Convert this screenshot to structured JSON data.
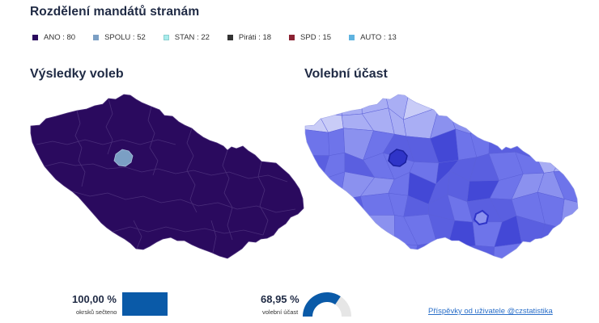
{
  "header": {
    "title": "Rozdělení mandátů stranám"
  },
  "legend": [
    {
      "label": "ANO : 80",
      "color": "#2a0a5e"
    },
    {
      "label": "SPOLU : 52",
      "color": "#7b9fc4"
    },
    {
      "label": "STAN : 22",
      "color": "#a9ecec"
    },
    {
      "label": "Piráti : 18",
      "color": "#333333"
    },
    {
      "label": "SPD : 15",
      "color": "#8b2232"
    },
    {
      "label": "AUTO : 13",
      "color": "#5fb3e0"
    }
  ],
  "maps": {
    "results_title": "Výsledky voleb",
    "turnout_title": "Volební účast",
    "results_fill": "#2a0a5e",
    "results_border": "#4a2e7a",
    "prague_fill": "#7b9fc4",
    "turnout_colors": [
      "#c9ccf7",
      "#a9aef4",
      "#8b91ef",
      "#6e74ea",
      "#5a5fe0",
      "#4348d6",
      "#2f34c8"
    ]
  },
  "stats": {
    "counted_value": "100,00 %",
    "counted_label": "okrsků sečteno",
    "counted_fraction": 1.0,
    "counted_color": "#0a5aa8",
    "turnout_value": "68,95 %",
    "turnout_label": "volební účast",
    "turnout_fraction": 0.6895,
    "turnout_color": "#0a5aa8",
    "turnout_bg": "#e6e6e6"
  },
  "footer": {
    "credit": "Příspěvky od uživatele @czstatistika"
  }
}
